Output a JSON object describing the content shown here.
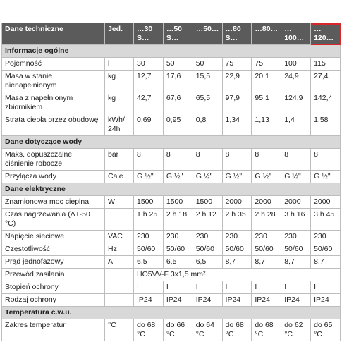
{
  "table": {
    "header": [
      "Dane techniczne",
      "Jed.",
      "…30 S…",
      "…50 S…",
      "…50…",
      "…80 S…",
      "…80…",
      "…100…",
      "…120…"
    ],
    "rows": [
      {
        "section": "Informacje ogólne"
      },
      {
        "label": "Pojemność",
        "unit": "l",
        "values": [
          "30",
          "50",
          "50",
          "75",
          "75",
          "100",
          "115"
        ]
      },
      {
        "label": "Masa w stanie nienapełnionym",
        "unit": "kg",
        "values": [
          "12,7",
          "17,6",
          "15,5",
          "22,9",
          "20,1",
          "24,9",
          "27,4"
        ]
      },
      {
        "label": "Masa z napełnionym zbiornikiem",
        "unit": "kg",
        "values": [
          "42,7",
          "67,6",
          "65,5",
          "97,9",
          "95,1",
          "124,9",
          "142,4"
        ]
      },
      {
        "label": "Strata ciepła przez obudowę",
        "unit": "kWh/ 24h",
        "values": [
          "0,69",
          "0,95",
          "0,8",
          "1,34",
          "1,13",
          "1,4",
          "1,58"
        ]
      },
      {
        "section": "Dane dotyczące wody"
      },
      {
        "label": "Maks. dopuszczalne ciśnienie robocze",
        "unit": "bar",
        "values": [
          "8",
          "8",
          "8",
          "8",
          "8",
          "8",
          "8"
        ]
      },
      {
        "label": "Przyłącza wody",
        "unit": "Cale",
        "values": [
          "G ½\"",
          "G ½\"",
          "G ½\"",
          "G ½\"",
          "G ½\"",
          "G ½\"",
          "G ½\""
        ]
      },
      {
        "section": "Dane elektryczne"
      },
      {
        "label": "Znamionowa moc cieplna",
        "unit": "W",
        "values": [
          "1500",
          "1500",
          "1500",
          "2000",
          "2000",
          "2000",
          "2000"
        ]
      },
      {
        "label": "Czas nagrzewania (ΔT-50 °C)",
        "values": [
          "1 h 25",
          "2 h 18",
          "2 h 12",
          "2 h 35",
          "2 h 28",
          "3 h 16",
          "3 h 45"
        ]
      },
      {
        "label": "Napięcie sieciowe",
        "unit": "VAC",
        "values": [
          "230",
          "230",
          "230",
          "230",
          "230",
          "230",
          "230"
        ]
      },
      {
        "label": "Częstotliwość",
        "unit": "Hz",
        "values": [
          "50/60",
          "50/60",
          "50/60",
          "50/60",
          "50/60",
          "50/60",
          "50/60"
        ]
      },
      {
        "label": "Prąd jednofazowy",
        "unit": "A",
        "values": [
          "6,5",
          "6,5",
          "6,5",
          "8,7",
          "8,7",
          "8,7",
          "8,7"
        ]
      },
      {
        "label": "Przewód zasilania",
        "value": "HO5VV-F 3x1,5 mm²"
      },
      {
        "label": "Stopień ochrony",
        "values": [
          "I",
          "I",
          "I",
          "I",
          "I",
          "I",
          "I"
        ]
      },
      {
        "label": "Rodzaj ochrony",
        "values": [
          "IP24",
          "IP24",
          "IP24",
          "IP24",
          "IP24",
          "IP24",
          "IP24"
        ]
      },
      {
        "section": "Temperatura c.w.u."
      },
      {
        "label": "Zakres temperatur",
        "unit": "°C",
        "values": [
          "do 68 °C",
          "do 66 °C",
          "do 64 °C",
          "do 68 °C",
          "do 68 °C",
          "do 62 °C",
          "do 65 °C"
        ]
      }
    ]
  }
}
